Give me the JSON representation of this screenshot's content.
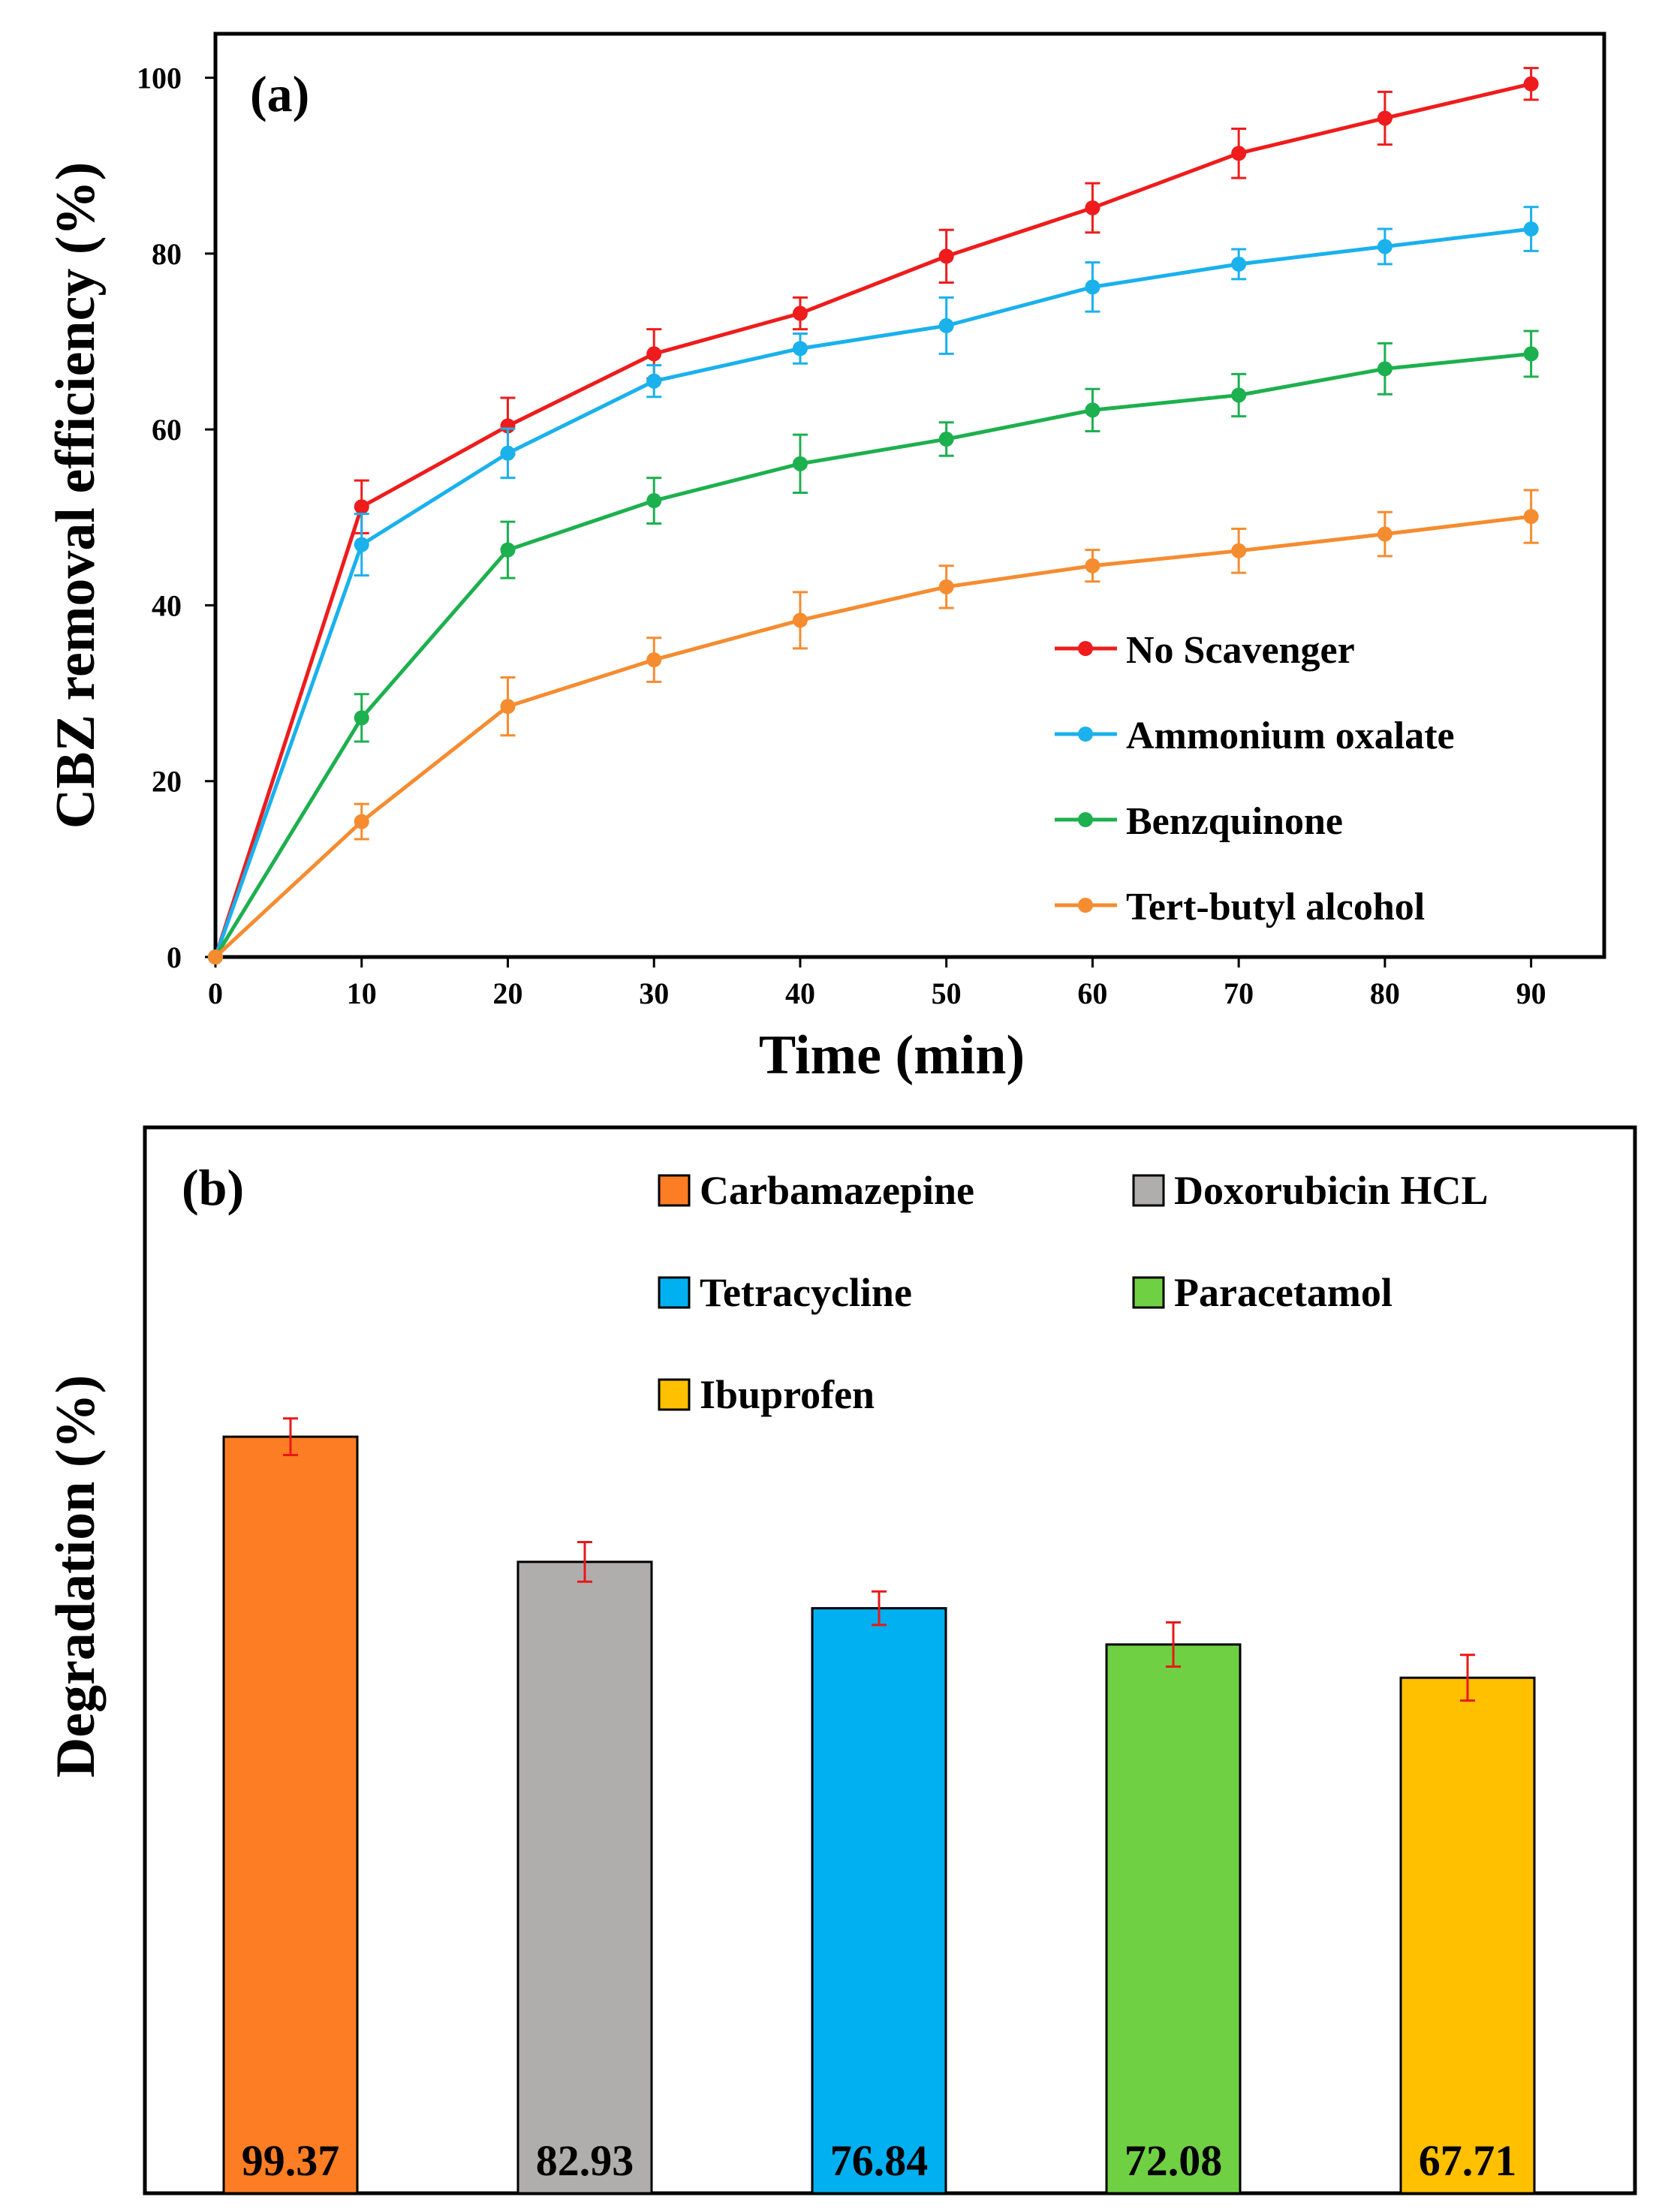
{
  "chart_data": [
    {
      "panel_label": "(a)",
      "type": "line",
      "xlabel": "Time (min)",
      "ylabel": "CBZ removal efficiency (%)",
      "xlim": [
        0,
        95
      ],
      "ylim": [
        0,
        105
      ],
      "x_ticks": [
        0,
        10,
        20,
        30,
        40,
        50,
        60,
        70,
        80,
        90
      ],
      "y_ticks": [
        0,
        20,
        40,
        60,
        80,
        100
      ],
      "x": [
        0,
        10,
        20,
        30,
        40,
        50,
        60,
        70,
        80,
        90
      ],
      "legend_position": "bottom-right",
      "grid": false,
      "series": [
        {
          "name": "No Scavenger",
          "color": "#EE1C1C",
          "values": [
            0,
            51.2,
            60.4,
            68.6,
            73.2,
            79.7,
            85.2,
            91.4,
            95.4,
            99.3
          ],
          "errors": [
            0,
            3.0,
            3.2,
            2.8,
            1.8,
            3.0,
            2.8,
            2.8,
            3.0,
            1.8
          ]
        },
        {
          "name": "Ammonium oxalate",
          "color": "#1AB1EC",
          "values": [
            0,
            46.9,
            57.3,
            65.5,
            69.2,
            71.8,
            76.2,
            78.8,
            80.8,
            82.8
          ],
          "errors": [
            0,
            3.5,
            2.8,
            1.8,
            1.7,
            3.2,
            2.8,
            1.7,
            2.0,
            2.5
          ]
        },
        {
          "name": "Benzquinone",
          "color": "#1DB04E",
          "values": [
            0,
            27.2,
            46.3,
            51.9,
            56.1,
            58.9,
            62.2,
            63.9,
            66.9,
            68.6
          ],
          "errors": [
            0,
            2.7,
            3.2,
            2.6,
            3.3,
            1.9,
            2.4,
            2.4,
            2.9,
            2.6
          ]
        },
        {
          "name": "Tert-butyl alcohol",
          "color": "#F58C30",
          "values": [
            0,
            15.4,
            28.5,
            33.8,
            38.3,
            42.1,
            44.5,
            46.2,
            48.1,
            50.1
          ],
          "errors": [
            0,
            2.0,
            3.3,
            2.5,
            3.2,
            2.4,
            1.8,
            2.5,
            2.5,
            3.0
          ]
        }
      ]
    },
    {
      "panel_label": "(b)",
      "type": "bar",
      "xlabel": "",
      "ylabel": "Degradation (%)",
      "ylim": [
        0,
        140
      ],
      "legend_position": "top-right",
      "grid": false,
      "categories": [
        "Carbamazepine",
        "Doxorubicin HCL",
        "Tetracycline",
        "Paracetamol",
        "Ibuprofen"
      ],
      "values": [
        99.37,
        82.93,
        76.84,
        72.08,
        67.71
      ],
      "value_labels": [
        "99.37",
        "82.93",
        "76.84",
        "72.08",
        "67.71"
      ],
      "errors": [
        2.4,
        2.6,
        2.2,
        2.9,
        3.0
      ],
      "colors": [
        "#FC7D23",
        "#B0AEAD",
        "#00B0F0",
        "#70D044",
        "#FFC000"
      ],
      "error_bar_color": "#E81818"
    }
  ]
}
